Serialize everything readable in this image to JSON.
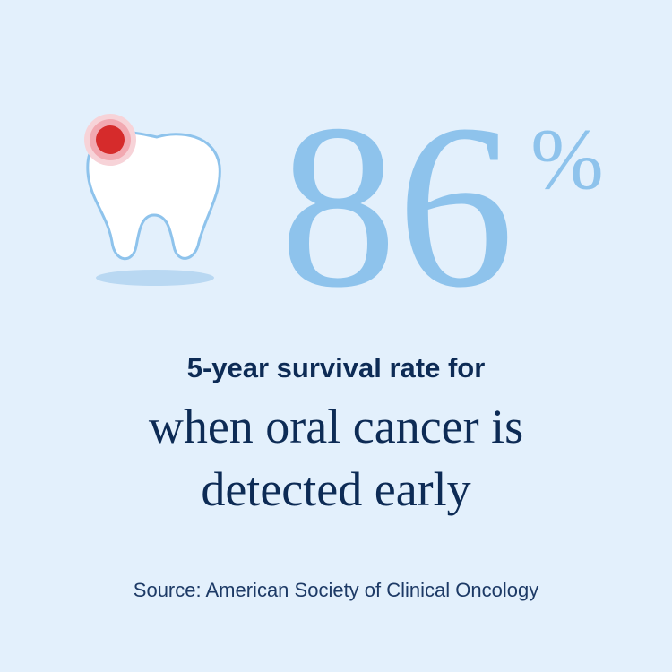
{
  "stat": {
    "value": 86,
    "unit": "%"
  },
  "label": "5-year survival rate for",
  "headline": [
    "when oral cancer is",
    "detected early"
  ],
  "source": "Source: American Society of Clinical Oncology"
}
